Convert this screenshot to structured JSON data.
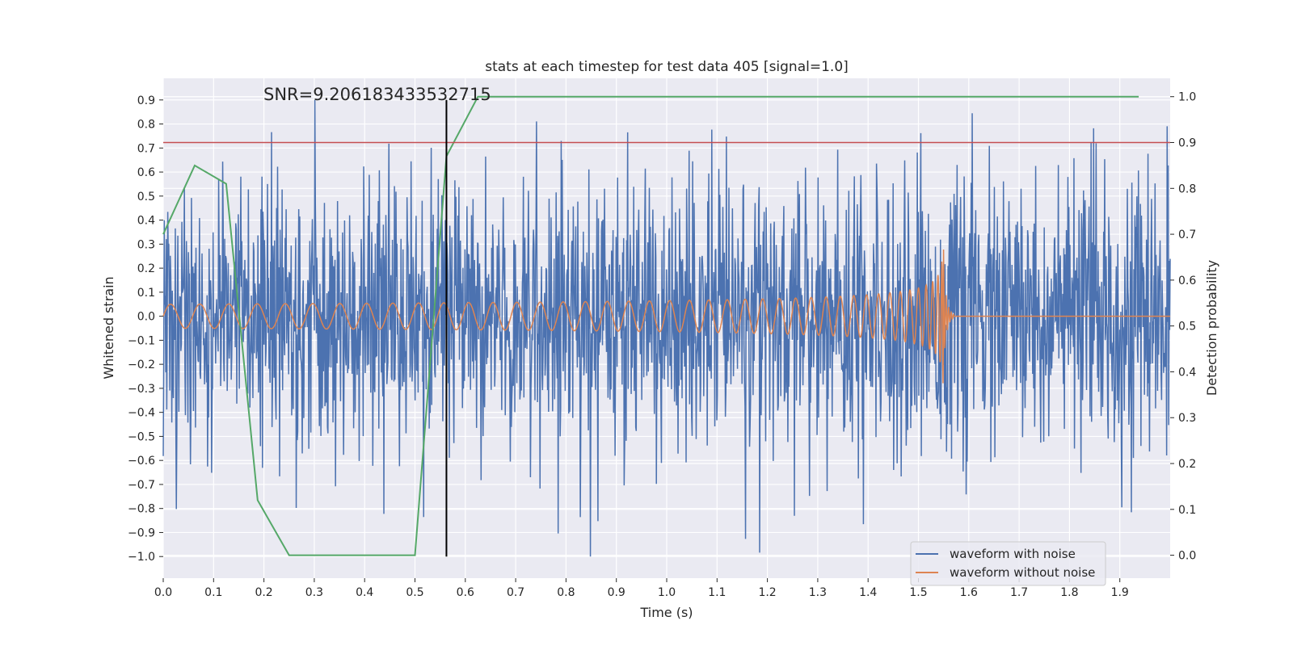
{
  "chart_data": {
    "type": "line",
    "title": "stats at each timestep for test data 405 [signal=1.0]",
    "xlabel": "Time (s)",
    "ylabel": "Whitened strain",
    "y2label": "Detection probability",
    "annotation": "SNR=9.206183433532715",
    "xlim": [
      0.0,
      2.0
    ],
    "ylim": [
      -1.09,
      0.99
    ],
    "y2lim": [
      -0.05,
      1.04
    ],
    "x_ticks": [
      "0.0",
      "0.1",
      "0.2",
      "0.3",
      "0.4",
      "0.5",
      "0.6",
      "0.7",
      "0.8",
      "0.9",
      "1.0",
      "1.1",
      "1.2",
      "1.3",
      "1.4",
      "1.5",
      "1.6",
      "1.7",
      "1.8",
      "1.9"
    ],
    "y_ticks": [
      "0.9",
      "0.8",
      "0.7",
      "0.6",
      "0.5",
      "0.4",
      "0.3",
      "0.2",
      "0.1",
      "0.0",
      "-0.1",
      "-0.2",
      "-0.3",
      "-0.4",
      "-0.5",
      "-0.6",
      "-0.7",
      "-0.8",
      "-0.9",
      "-1.0"
    ],
    "y2_ticks": [
      "1.0",
      "0.9",
      "0.8",
      "0.7",
      "0.6",
      "0.5",
      "0.4",
      "0.3",
      "0.2",
      "0.1",
      "0.0"
    ],
    "grid": true,
    "legend_position": "lower-right",
    "legend": [
      "waveform with noise",
      "waveform without noise"
    ],
    "series": [
      {
        "name": "waveform with noise",
        "color": "#4c72b0",
        "axis": "left",
        "description": "noisy whitened strain, approx range -1.0 to 0.9 over 0.0–2.0 s"
      },
      {
        "name": "waveform without noise",
        "color": "#dd8452",
        "axis": "left",
        "description": "chirp signal, amplitude ~0.05 until ~1.3 s, growing to ~0.3 near 1.55 s, zero after",
        "merger_time": 1.55
      },
      {
        "name": "detection probability",
        "color": "#55a868",
        "axis": "right",
        "x": [
          0.0,
          0.0625,
          0.125,
          0.1875,
          0.25,
          0.3125,
          0.375,
          0.4375,
          0.5,
          0.5625,
          0.625,
          0.6875,
          0.75,
          1.0,
          1.25,
          1.5,
          1.75,
          1.9375
        ],
        "y": [
          0.7,
          0.85,
          0.81,
          0.12,
          0.0,
          0.0,
          0.0,
          0.0,
          0.0,
          0.87,
          1.0,
          1.0,
          1.0,
          1.0,
          1.0,
          1.0,
          1.0,
          1.0
        ]
      }
    ],
    "threshold": {
      "axis": "right",
      "value": 0.9,
      "color": "#c44e52"
    },
    "marker_time": {
      "x": 0.5625,
      "color": "#000000",
      "y_from": -1.0,
      "y_to": 0.9
    }
  }
}
